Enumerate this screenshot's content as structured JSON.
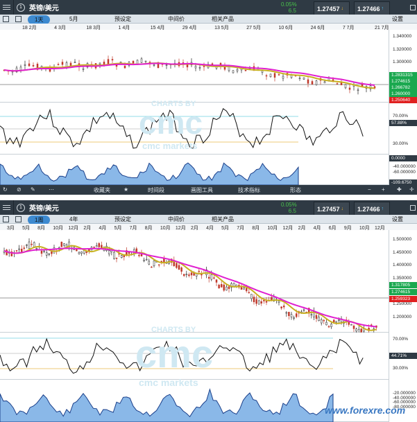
{
  "window1": {
    "symbol": "英镑/美元",
    "change_pct": "0.05%",
    "spread": "6.5",
    "sell": "1.27457",
    "buy": "1.27466",
    "timeframe": "1天",
    "range": "5月",
    "toolbar": [
      "预设定",
      "中间价",
      "相关产品"
    ],
    "settings": "设置",
    "dates": [
      "18 2月",
      "4 3月",
      "18 3月",
      "1 4月",
      "15 4月",
      "29 4月",
      "13 5月",
      "27 5月",
      "10 6月",
      "24 6月",
      "7 7月",
      "21 7月"
    ],
    "price_axis": [
      "1.340000",
      "1.320000",
      "1.300000",
      "1.280000",
      "1.260000"
    ],
    "price_tags": [
      {
        "text": "1.2831315",
        "color": "#1aa84f"
      },
      {
        "text": "1.274615",
        "color": "#1aa84f"
      },
      {
        "text": "1.266782",
        "color": "#1aa84f"
      },
      {
        "text": "1.260000",
        "color": "#1aa84f"
      },
      {
        "text": "1.250640",
        "color": "#e02020"
      }
    ],
    "rsi_axis": [
      "70.00%",
      "30.00%"
    ],
    "rsi_tag": "57.88%",
    "osc_axis": [
      "-40.000000",
      "-60.000000"
    ],
    "osc_tag_top": "0.0000",
    "osc_tag_bottom": "-109.6750"
  },
  "midbar": {
    "items": [
      "收藏夹",
      "时间段",
      "画图工具",
      "技术指标",
      "形态"
    ]
  },
  "window2": {
    "symbol": "英镑/美元",
    "change_pct": "0.05%",
    "spread": "6.5",
    "sell": "1.27457",
    "buy": "1.27466",
    "timeframe": "1周",
    "range": "4年",
    "toolbar": [
      "预设定",
      "中间价",
      "相关产品"
    ],
    "settings": "设置",
    "dates": [
      "3月",
      "5月",
      "8月",
      "10月",
      "12月",
      "2月",
      "4月",
      "5月",
      "7月",
      "8月",
      "10月",
      "12月",
      "2月",
      "4月",
      "5月",
      "7月",
      "8月",
      "10月",
      "12月",
      "2月",
      "4月",
      "6月",
      "9月",
      "10月",
      "12月"
    ],
    "price_axis": [
      "1.500000",
      "1.450000",
      "1.400000",
      "1.350000",
      "1.300000",
      "1.250000",
      "1.200000"
    ],
    "price_tags": [
      {
        "text": "1.317805",
        "color": "#1aa84f"
      },
      {
        "text": "1.274615",
        "color": "#1aa84f"
      },
      {
        "text": "1.259323",
        "color": "#e02020"
      }
    ],
    "rsi_axis": [
      "70.00%",
      "30.00%"
    ],
    "rsi_tag": "44.71%",
    "osc_axis": [
      "-20.000000",
      "-40.000000",
      "-60.000000",
      "-80.000000"
    ]
  },
  "watermark": {
    "top": "CHARTS BY",
    "logo": "cmc",
    "bottom": "cmc markets",
    "site": "www.forexre.com"
  }
}
